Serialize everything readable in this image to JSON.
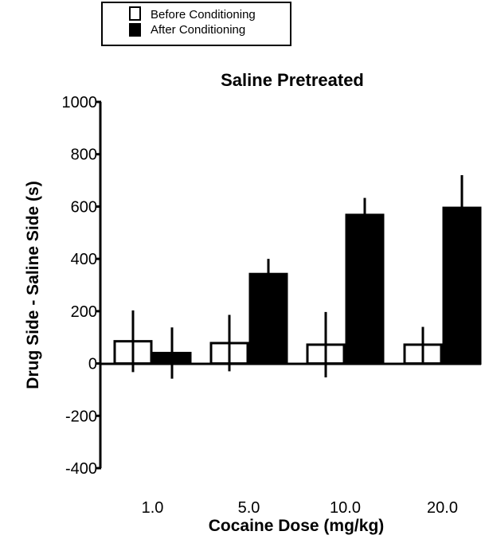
{
  "chart_data": {
    "type": "bar",
    "title": "Saline Pretreated",
    "xlabel": "Cocaine Dose (mg/kg)",
    "ylabel": "Drug Side - Saline Side (s)",
    "ylim": [
      -400,
      1000
    ],
    "yticks": [
      -400,
      -200,
      0,
      200,
      400,
      600,
      800,
      1000
    ],
    "ytick_labels": [
      "-400",
      "-200",
      "0",
      "200",
      "400",
      "600",
      "800",
      "1000"
    ],
    "categories": [
      "1.0",
      "5.0",
      "10.0",
      "20.0"
    ],
    "grid": false,
    "legend_position": "top-left",
    "series": [
      {
        "name": "Before Conditioning",
        "fill": "#ffffff",
        "values": [
          85,
          78,
          72,
          72
        ],
        "errors": [
          118,
          108,
          125,
          68
        ]
      },
      {
        "name": "After Conditioning",
        "fill": "#000000",
        "values": [
          40,
          342,
          568,
          595
        ],
        "errors": [
          98,
          58,
          65,
          125
        ]
      }
    ]
  }
}
